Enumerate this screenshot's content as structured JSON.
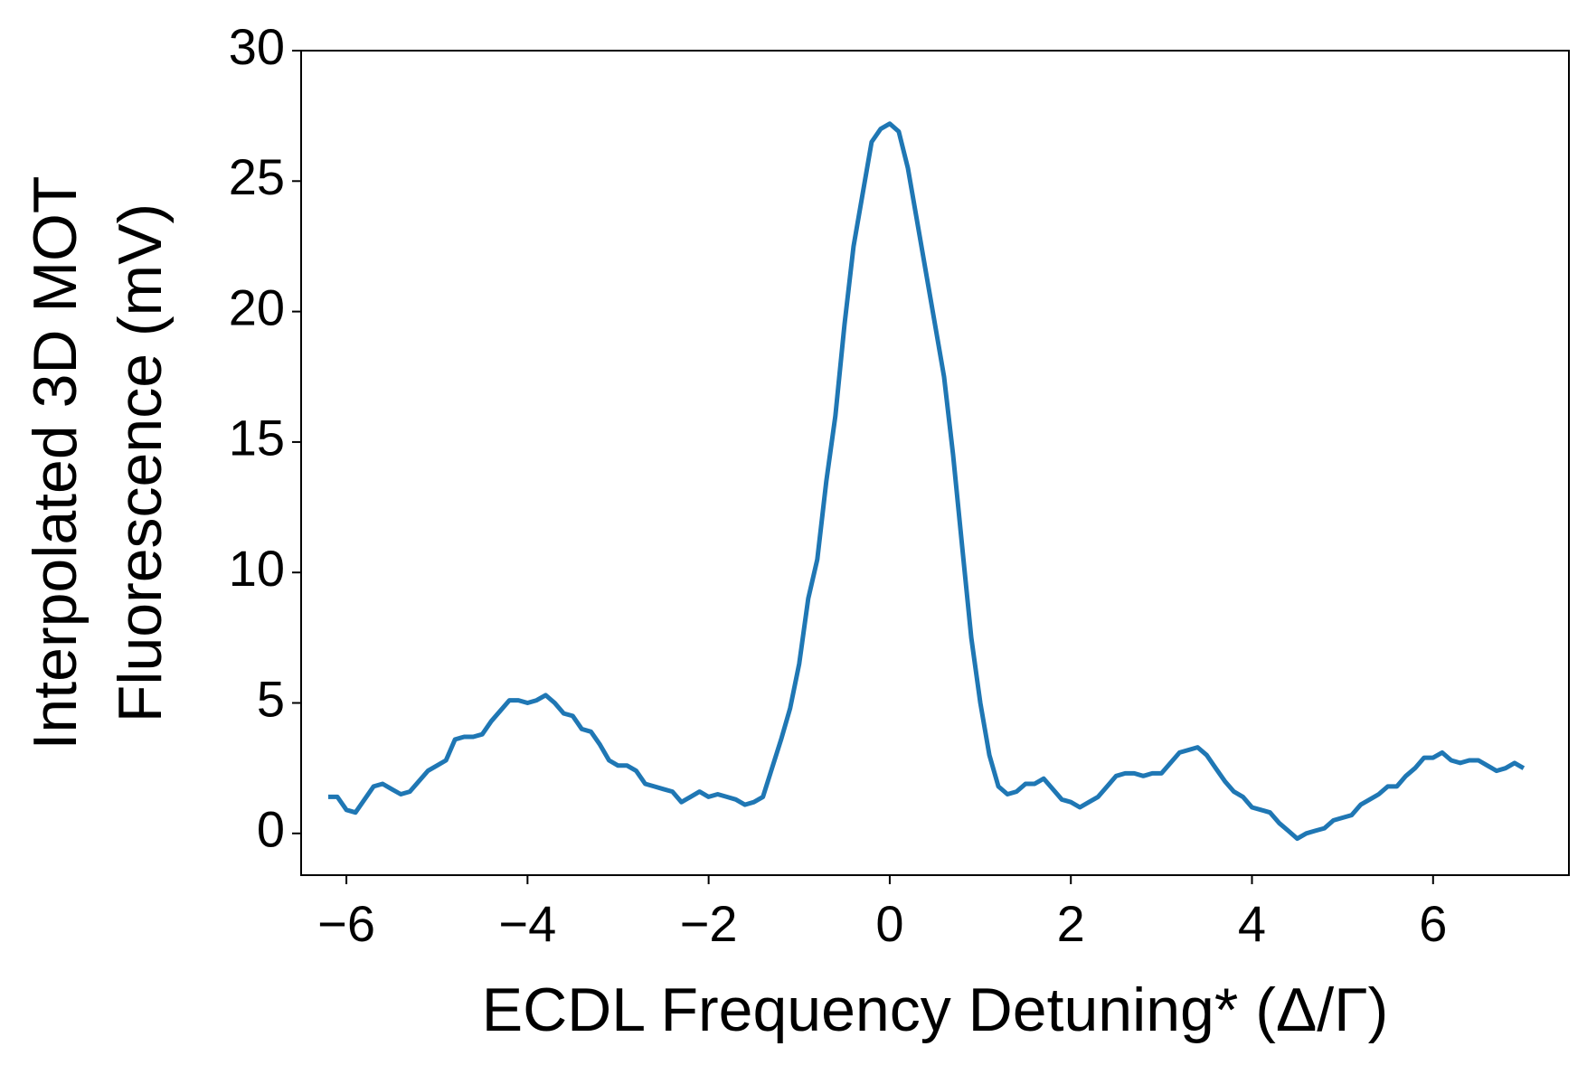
{
  "chart_data": {
    "type": "line",
    "xlabel": "ECDL Frequency Detuning* (Δ/Γ)",
    "ylabel": [
      "Interpolated 3D MOT",
      "Fluorescence (mV)"
    ],
    "xlim": [
      -6.5,
      7.5
    ],
    "ylim": [
      -1.6,
      30
    ],
    "xticks": [
      {
        "value": -6,
        "label": "−6"
      },
      {
        "value": -4,
        "label": "−4"
      },
      {
        "value": -2,
        "label": "−2"
      },
      0,
      2,
      4,
      6
    ],
    "yticks": [
      0,
      5,
      10,
      15,
      20,
      25,
      30
    ],
    "x": [
      -6.2,
      -6.1,
      -6.0,
      -5.9,
      -5.8,
      -5.7,
      -5.6,
      -5.5,
      -5.4,
      -5.3,
      -5.2,
      -5.1,
      -5.0,
      -4.9,
      -4.8,
      -4.7,
      -4.6,
      -4.5,
      -4.4,
      -4.3,
      -4.2,
      -4.1,
      -4.0,
      -3.9,
      -3.8,
      -3.7,
      -3.6,
      -3.5,
      -3.4,
      -3.3,
      -3.2,
      -3.1,
      -3.0,
      -2.9,
      -2.8,
      -2.7,
      -2.6,
      -2.5,
      -2.4,
      -2.3,
      -2.2,
      -2.1,
      -2.0,
      -1.9,
      -1.8,
      -1.7,
      -1.6,
      -1.5,
      -1.4,
      -1.3,
      -1.2,
      -1.1,
      -1.0,
      -0.9,
      -0.8,
      -0.7,
      -0.6,
      -0.5,
      -0.4,
      -0.3,
      -0.2,
      -0.1,
      0.0,
      0.1,
      0.2,
      0.3,
      0.4,
      0.5,
      0.6,
      0.7,
      0.8,
      0.9,
      1.0,
      1.1,
      1.2,
      1.3,
      1.4,
      1.5,
      1.6,
      1.7,
      1.8,
      1.9,
      2.0,
      2.1,
      2.2,
      2.3,
      2.4,
      2.5,
      2.6,
      2.7,
      2.8,
      2.9,
      3.0,
      3.1,
      3.2,
      3.3,
      3.4,
      3.5,
      3.6,
      3.7,
      3.8,
      3.9,
      4.0,
      4.1,
      4.2,
      4.3,
      4.4,
      4.5,
      4.6,
      4.7,
      4.8,
      4.9,
      5.0,
      5.1,
      5.2,
      5.3,
      5.4,
      5.5,
      5.6,
      5.7,
      5.8,
      5.9,
      6.0,
      6.1,
      6.2,
      6.3,
      6.4,
      6.5,
      6.6,
      6.7,
      6.8,
      6.9,
      7.0
    ],
    "series": [
      {
        "color": "#1f77b4",
        "values": [
          1.4,
          1.4,
          0.9,
          0.8,
          1.3,
          1.8,
          1.9,
          1.7,
          1.5,
          1.6,
          2.0,
          2.4,
          2.6,
          2.8,
          3.6,
          3.7,
          3.7,
          3.8,
          4.3,
          4.7,
          5.1,
          5.1,
          5.0,
          5.1,
          5.3,
          5.0,
          4.6,
          4.5,
          4.0,
          3.9,
          3.4,
          2.8,
          2.6,
          2.6,
          2.4,
          1.9,
          1.8,
          1.7,
          1.6,
          1.2,
          1.4,
          1.6,
          1.4,
          1.5,
          1.4,
          1.3,
          1.1,
          1.2,
          1.4,
          2.5,
          3.6,
          4.8,
          6.5,
          9.0,
          10.5,
          13.5,
          16.0,
          19.5,
          22.5,
          24.5,
          26.5,
          27.0,
          27.2,
          26.9,
          25.5,
          23.5,
          21.5,
          19.5,
          17.5,
          14.5,
          11.0,
          7.5,
          5.0,
          3.0,
          1.8,
          1.5,
          1.6,
          1.9,
          1.9,
          2.1,
          1.7,
          1.3,
          1.2,
          1.0,
          1.2,
          1.4,
          1.8,
          2.2,
          2.3,
          2.3,
          2.2,
          2.3,
          2.3,
          2.7,
          3.1,
          3.2,
          3.3,
          3.0,
          2.5,
          2.0,
          1.6,
          1.4,
          1.0,
          0.9,
          0.8,
          0.4,
          0.1,
          -0.2,
          0.0,
          0.1,
          0.2,
          0.5,
          0.6,
          0.7,
          1.1,
          1.3,
          1.5,
          1.8,
          1.8,
          2.2,
          2.5,
          2.9,
          2.9,
          3.1,
          2.8,
          2.7,
          2.8,
          2.8,
          2.6,
          2.4,
          2.5,
          2.7,
          2.5
        ]
      }
    ]
  }
}
